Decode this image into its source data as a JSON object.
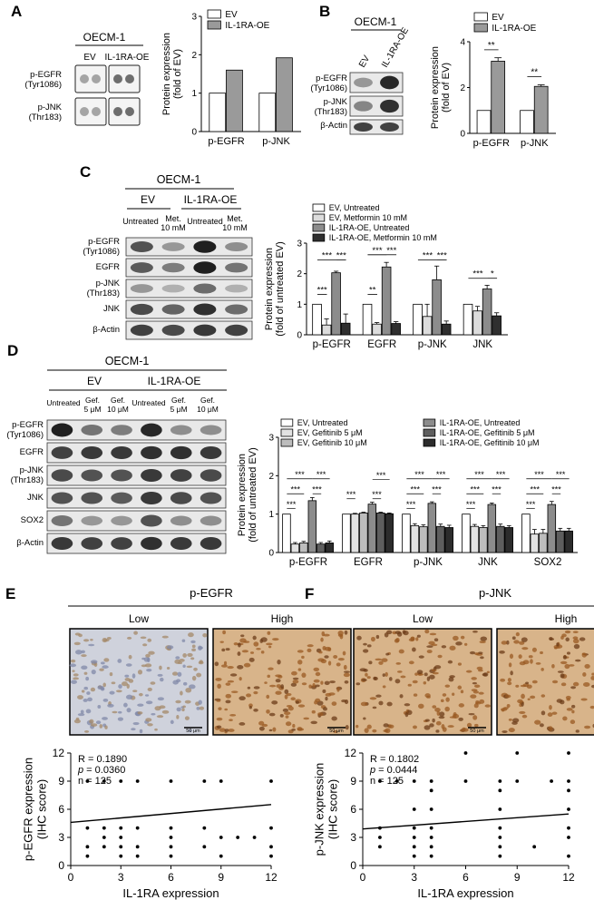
{
  "panels": {
    "A": {
      "letter": "A",
      "cell_line": "OECM-1",
      "lanes": [
        "EV",
        "IL-1RA-OE"
      ],
      "rows": [
        "p-EGFR\n(Tyr1086)",
        "p-JNK\n(Thr183)"
      ]
    },
    "B": {
      "letter": "B",
      "cell_line": "OECM-1",
      "lanes": [
        "EV",
        "IL-1RA-OE"
      ],
      "rows": [
        "p-EGFR\n(Tyr1086)",
        "p-JNK\n(Thr183)",
        "β-Actin"
      ]
    },
    "C": {
      "letter": "C",
      "cell_line": "OECM-1",
      "groups": [
        "EV",
        "IL-1RA-OE"
      ],
      "lanes": [
        "Untreated",
        "Met.\n10 mM",
        "Untreated",
        "Met.\n10 mM"
      ],
      "rows": [
        "p-EGFR\n(Tyr1086)",
        "EGFR",
        "p-JNK\n(Thr183)",
        "JNK",
        "β-Actin"
      ]
    },
    "D": {
      "letter": "D",
      "cell_line": "OECM-1",
      "groups": [
        "EV",
        "IL-1RA-OE"
      ],
      "lanes": [
        "Untreated",
        "Gef.\n5 μM",
        "Gef.\n10 μM",
        "Untreated",
        "Gef.\n5 μM",
        "Gef.\n10 μM"
      ],
      "rows": [
        "p-EGFR\n(Tyr1086)",
        "EGFR",
        "p-JNK\n(Thr183)",
        "JNK",
        "SOX2",
        "β-Actin"
      ]
    },
    "E": {
      "letter": "E",
      "title": "p-EGFR",
      "images": [
        "Low",
        "High"
      ],
      "scale_bar": "50 μm"
    },
    "F": {
      "letter": "F",
      "title": "p-JNK",
      "images": [
        "Low",
        "High"
      ],
      "scale_bar": "50 μm"
    }
  },
  "chart_data": [
    {
      "id": "A",
      "type": "bar",
      "categories": [
        "p-EGFR",
        "p-JNK"
      ],
      "series": [
        {
          "name": "EV",
          "values": [
            1.0,
            1.0
          ],
          "color": "#ffffff"
        },
        {
          "name": "IL-1RA-OE",
          "values": [
            1.6,
            1.92
          ],
          "color": "#9a9a9a"
        }
      ],
      "ylabel": "Protein expression\n(fold of EV)",
      "ylim": [
        0,
        3
      ],
      "yticks": [
        0,
        1,
        2,
        3
      ]
    },
    {
      "id": "B",
      "type": "bar",
      "categories": [
        "p-EGFR",
        "p-JNK"
      ],
      "series": [
        {
          "name": "EV",
          "values": [
            1.0,
            1.0
          ],
          "error": [
            0,
            0
          ],
          "color": "#ffffff"
        },
        {
          "name": "IL-1RA-OE",
          "values": [
            3.15,
            2.05
          ],
          "error": [
            0.15,
            0.07
          ],
          "color": "#9a9a9a"
        }
      ],
      "ylabel": "Protein expression\n(fold of EV)",
      "ylim": [
        0,
        4
      ],
      "yticks": [
        0,
        2,
        4
      ],
      "significance": [
        "**",
        "**"
      ]
    },
    {
      "id": "C",
      "type": "bar",
      "categories": [
        "p-EGFR",
        "EGFR",
        "p-JNK",
        "JNK"
      ],
      "series": [
        {
          "name": "EV, Untreated",
          "values": [
            1.0,
            1.0,
            1.0,
            1.0
          ],
          "error": [
            0,
            0,
            0,
            0
          ],
          "color": "#ffffff"
        },
        {
          "name": "EV, Metformin 10 mM",
          "values": [
            0.32,
            0.35,
            0.6,
            0.78
          ],
          "error": [
            0.2,
            0.05,
            0.4,
            0.15
          ],
          "color": "#dcdcdc"
        },
        {
          "name": "IL-1RA-OE, Untreated",
          "values": [
            2.03,
            2.22,
            1.8,
            1.5
          ],
          "error": [
            0.05,
            0.15,
            0.45,
            0.12
          ],
          "color": "#8c8c8c"
        },
        {
          "name": "IL-1RA-OE, Metformin 10 mM",
          "values": [
            0.38,
            0.37,
            0.35,
            0.62
          ],
          "error": [
            0.3,
            0.06,
            0.1,
            0.1
          ],
          "color": "#2f2f2f"
        }
      ],
      "ylabel": "Protein expression\n(fold of untreated EV)",
      "ylim": [
        0,
        3
      ],
      "yticks": [
        0,
        1,
        2,
        3
      ],
      "significance": [
        {
          "cat": 0,
          "from": 0,
          "to": 1,
          "label": "***",
          "level": 0
        },
        {
          "cat": 0,
          "from": 0,
          "to": 2,
          "label": "***",
          "level": 1
        },
        {
          "cat": 0,
          "from": 2,
          "to": 3,
          "label": "***",
          "level": 1
        },
        {
          "cat": 1,
          "from": 0,
          "to": 1,
          "label": "**",
          "level": 0
        },
        {
          "cat": 1,
          "from": 0,
          "to": 2,
          "label": "***",
          "level": 1
        },
        {
          "cat": 1,
          "from": 2,
          "to": 3,
          "label": "***",
          "level": 1
        },
        {
          "cat": 2,
          "from": 0,
          "to": 2,
          "label": "***",
          "level": 1
        },
        {
          "cat": 2,
          "from": 2,
          "to": 3,
          "label": "***",
          "level": 1
        },
        {
          "cat": 3,
          "from": 0,
          "to": 2,
          "label": "***",
          "level": 0.4
        },
        {
          "cat": 3,
          "from": 2,
          "to": 3,
          "label": "*",
          "level": 0.4
        }
      ]
    },
    {
      "id": "D",
      "type": "bar",
      "categories": [
        "p-EGFR",
        "EGFR",
        "p-JNK",
        "JNK",
        "SOX2"
      ],
      "series": [
        {
          "name": "EV, Untreated",
          "values": [
            1.0,
            1.0,
            1.0,
            1.0,
            1.0
          ],
          "error": [
            0,
            0,
            0,
            0,
            0
          ],
          "color": "#ffffff"
        },
        {
          "name": "EV, Gefitinib 5 μM",
          "values": [
            0.22,
            1.0,
            0.7,
            0.68,
            0.48
          ],
          "error": [
            0.04,
            0.02,
            0.05,
            0.05,
            0.12
          ],
          "color": "#e2e2e2"
        },
        {
          "name": "EV, Gefitinib 10 μM",
          "values": [
            0.25,
            1.03,
            0.67,
            0.65,
            0.5
          ],
          "error": [
            0.04,
            0.02,
            0.05,
            0.05,
            0.1
          ],
          "color": "#bdbdbd"
        },
        {
          "name": "IL-1RA-OE, Untreated",
          "values": [
            1.35,
            1.26,
            1.28,
            1.25,
            1.25
          ],
          "error": [
            0.08,
            0.05,
            0.04,
            0.04,
            0.08
          ],
          "color": "#8c8c8c"
        },
        {
          "name": "IL-1RA-OE, Gefitinib 5 μM",
          "values": [
            0.22,
            1.03,
            0.68,
            0.68,
            0.56
          ],
          "error": [
            0.04,
            0.02,
            0.06,
            0.06,
            0.07
          ],
          "color": "#5e5e5e"
        },
        {
          "name": "IL-1RA-OE, Gefitinib 10 μM",
          "values": [
            0.25,
            1.01,
            0.65,
            0.65,
            0.56
          ],
          "error": [
            0.05,
            0.02,
            0.06,
            0.05,
            0.07
          ],
          "color": "#2c2c2c"
        }
      ],
      "ylabel": "Protein expression\n(fold of untreated EV)",
      "ylim": [
        0,
        3
      ],
      "yticks": [
        0,
        1,
        2,
        3
      ],
      "significance_label": "***"
    },
    {
      "id": "E",
      "type": "scatter",
      "annotations": [
        "R = 0.1890",
        "p = 0.0360",
        "n = 125"
      ],
      "xlabel": "IL-1RA expression\n(IHC score)",
      "ylabel": "p-EGFR expression\n(IHC score)",
      "xlim": [
        0,
        12
      ],
      "ylim": [
        0,
        12
      ],
      "xticks": [
        0,
        3,
        6,
        9,
        12
      ],
      "yticks": [
        0,
        3,
        6,
        9,
        12
      ],
      "points": [
        [
          1,
          9
        ],
        [
          2,
          9
        ],
        [
          3,
          9
        ],
        [
          4,
          9
        ],
        [
          6,
          9
        ],
        [
          8,
          9
        ],
        [
          9,
          9
        ],
        [
          12,
          9
        ],
        [
          1,
          4
        ],
        [
          2,
          4
        ],
        [
          3,
          4
        ],
        [
          4,
          4
        ],
        [
          6,
          4
        ],
        [
          8,
          4
        ],
        [
          12,
          4
        ],
        [
          2,
          3
        ],
        [
          3,
          3
        ],
        [
          6,
          3
        ],
        [
          9,
          3
        ],
        [
          10,
          3
        ],
        [
          11,
          3
        ],
        [
          1,
          2
        ],
        [
          2,
          2
        ],
        [
          3,
          2
        ],
        [
          4,
          2
        ],
        [
          6,
          2
        ],
        [
          8,
          2
        ],
        [
          12,
          2
        ],
        [
          1,
          1
        ],
        [
          3,
          1
        ],
        [
          4,
          1
        ],
        [
          6,
          1
        ],
        [
          9,
          1
        ],
        [
          12,
          1
        ]
      ],
      "fit": [
        [
          0,
          4.6
        ],
        [
          12,
          6.5
        ]
      ]
    },
    {
      "id": "F",
      "type": "scatter",
      "annotations": [
        "R = 0.1802",
        "p = 0.0444",
        "n = 125"
      ],
      "xlabel": "IL-1RA expression\n(IHC score)",
      "ylabel": "p-JNK expression\n(IHC score)",
      "xlim": [
        0,
        12
      ],
      "ylim": [
        0,
        12
      ],
      "xticks": [
        0,
        3,
        6,
        9,
        12
      ],
      "yticks": [
        0,
        3,
        6,
        9,
        12
      ],
      "points": [
        [
          6,
          12
        ],
        [
          9,
          12
        ],
        [
          12,
          12
        ],
        [
          1,
          9
        ],
        [
          2,
          9
        ],
        [
          3,
          9
        ],
        [
          4,
          9
        ],
        [
          6,
          9
        ],
        [
          8,
          9
        ],
        [
          9,
          9
        ],
        [
          11,
          9
        ],
        [
          12,
          9
        ],
        [
          4,
          8
        ],
        [
          8,
          8
        ],
        [
          12,
          8
        ],
        [
          3,
          6
        ],
        [
          4,
          6
        ],
        [
          8,
          6
        ],
        [
          12,
          6
        ],
        [
          1,
          4
        ],
        [
          3,
          4
        ],
        [
          4,
          4
        ],
        [
          8,
          4
        ],
        [
          12,
          4
        ],
        [
          1,
          3
        ],
        [
          3,
          3
        ],
        [
          4,
          3
        ],
        [
          8,
          3
        ],
        [
          12,
          3
        ],
        [
          1,
          2
        ],
        [
          3,
          2
        ],
        [
          4,
          2
        ],
        [
          8,
          2
        ],
        [
          10,
          2
        ],
        [
          3,
          1
        ],
        [
          4,
          1
        ],
        [
          8,
          1
        ],
        [
          12,
          1
        ]
      ],
      "fit": [
        [
          0,
          3.9
        ],
        [
          12,
          5.5
        ]
      ]
    }
  ]
}
